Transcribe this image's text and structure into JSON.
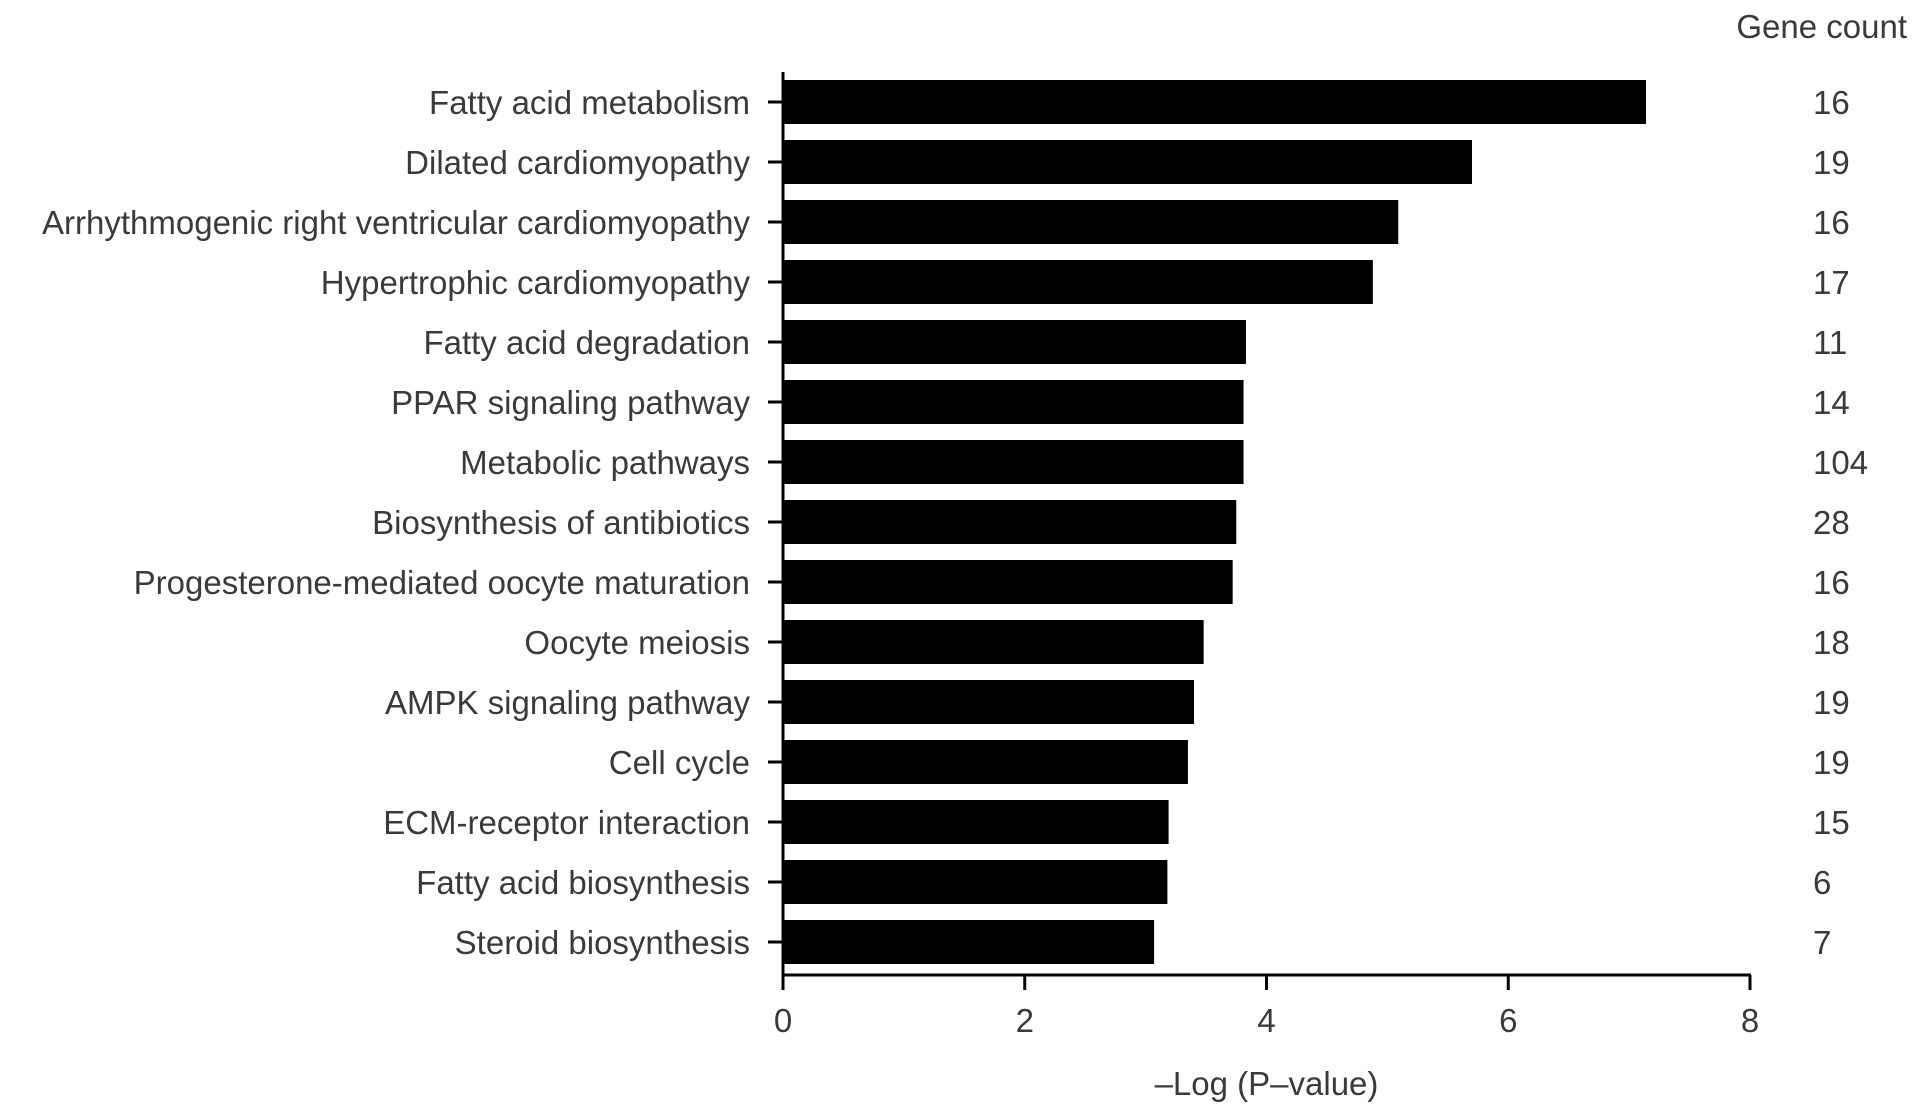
{
  "chart_data": {
    "type": "bar",
    "orientation": "horizontal",
    "title": "",
    "xlabel": "–Log (P–value)",
    "ylabel": "",
    "xlim": [
      0,
      8
    ],
    "xticks": [
      0,
      2,
      4,
      6,
      8
    ],
    "grid": false,
    "categories": [
      "Fatty acid metabolism",
      "Dilated cardiomyopathy",
      "Arrhythmogenic right ventricular cardiomyopathy",
      "Hypertrophic cardiomyopathy",
      "Fatty acid degradation",
      "PPAR signaling pathway",
      "Metabolic pathways",
      "Biosynthesis of antibiotics",
      "Progesterone-mediated oocyte maturation",
      "Oocyte meiosis",
      "AMPK signaling pathway",
      "Cell cycle",
      "ECM-receptor interaction",
      "Fatty acid biosynthesis",
      "Steroid biosynthesis"
    ],
    "values": [
      7.14,
      5.7,
      5.09,
      4.88,
      3.83,
      3.81,
      3.81,
      3.75,
      3.72,
      3.48,
      3.4,
      3.35,
      3.19,
      3.18,
      3.07
    ],
    "gene_count_header": "Gene count",
    "gene_counts": [
      "16",
      "19",
      "16",
      "17",
      "11",
      "14",
      "104",
      "28",
      "16",
      "18",
      "19",
      "19",
      "15",
      "6",
      "7"
    ],
    "bar_color": "#000000"
  }
}
